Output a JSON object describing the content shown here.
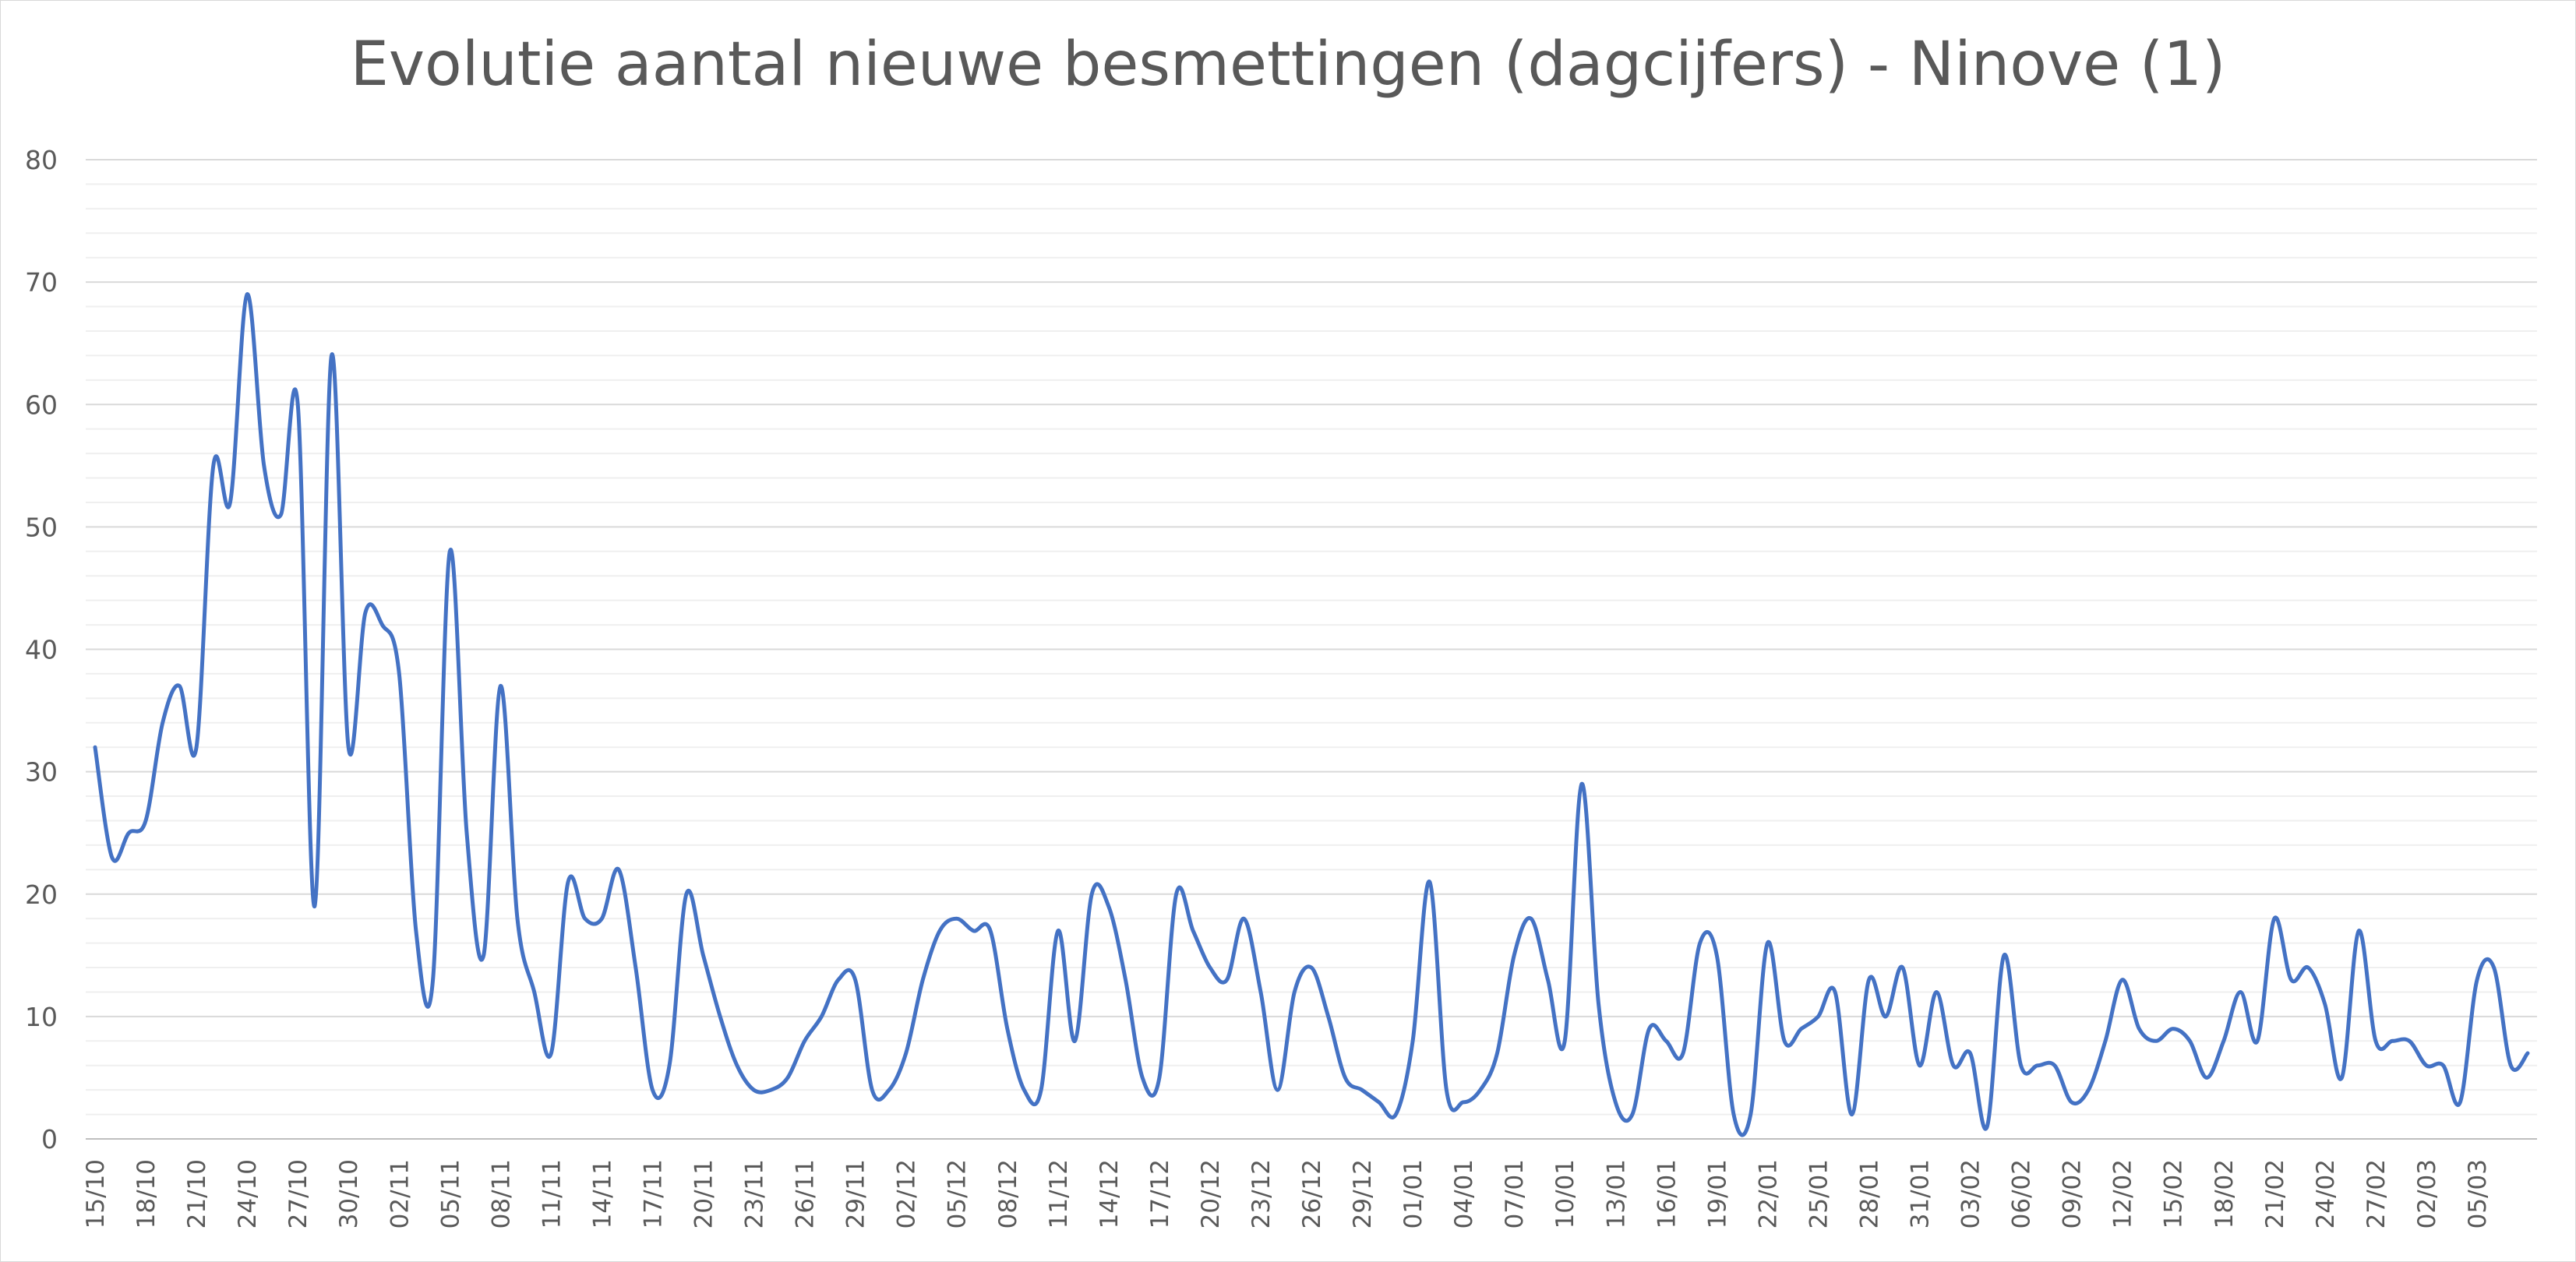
{
  "chart_data": {
    "type": "line",
    "title": "Evolutie aantal nieuwe besmettingen (dagcijfers) - Ninove (1)",
    "xlabel": "",
    "ylabel": "",
    "ylim": [
      0,
      80
    ],
    "yticks": [
      0,
      10,
      20,
      30,
      40,
      50,
      60,
      70,
      80
    ],
    "major_grid": true,
    "minor_grid": true,
    "line_color": "#4472c4",
    "x_tick_labels": [
      "15/10",
      "18/10",
      "21/10",
      "24/10",
      "27/10",
      "30/10",
      "02/11",
      "05/11",
      "08/11",
      "11/11",
      "14/11",
      "17/11",
      "20/11",
      "23/11",
      "26/11",
      "29/11",
      "02/12",
      "05/12",
      "08/12",
      "11/12",
      "14/12",
      "17/12",
      "20/12",
      "23/12",
      "26/12",
      "29/12",
      "01/01",
      "04/01",
      "07/01",
      "10/01",
      "13/01",
      "16/01",
      "19/01",
      "22/01",
      "25/01",
      "28/01",
      "31/01",
      "03/02",
      "06/02",
      "09/02",
      "12/02",
      "15/02",
      "18/02",
      "21/02",
      "24/02",
      "27/02",
      "02/03",
      "05/03"
    ],
    "series": [
      {
        "values": [
          32,
          23,
          25,
          26,
          34,
          37,
          32,
          55,
          52,
          69,
          55,
          51,
          60,
          19,
          64,
          32,
          43,
          42,
          38,
          17,
          13,
          48,
          25,
          15,
          37,
          18,
          12,
          7,
          21,
          18,
          18,
          22,
          14,
          4,
          6,
          20,
          15,
          10,
          6,
          4,
          4,
          5,
          8,
          10,
          13,
          13,
          4,
          4,
          7,
          13,
          17,
          18,
          17,
          17,
          9,
          4,
          4,
          17,
          8,
          20,
          19,
          13,
          5,
          5,
          20,
          17,
          14,
          13,
          18,
          12,
          4,
          12,
          14,
          10,
          5,
          4,
          3,
          2,
          8,
          21,
          4,
          3,
          4,
          7,
          15,
          18,
          13,
          8,
          29,
          11,
          3,
          2,
          9,
          8,
          7,
          16,
          15,
          2,
          2,
          16,
          8,
          9,
          10,
          12,
          2,
          13,
          10,
          14,
          6,
          12,
          6,
          7,
          1,
          15,
          6,
          6,
          6,
          3,
          4,
          8,
          13,
          9,
          8,
          9,
          8,
          5,
          8,
          12,
          8,
          18,
          13,
          14,
          11,
          5,
          17,
          8,
          8,
          8,
          6,
          6,
          3,
          13,
          14,
          6,
          7
        ]
      }
    ]
  }
}
